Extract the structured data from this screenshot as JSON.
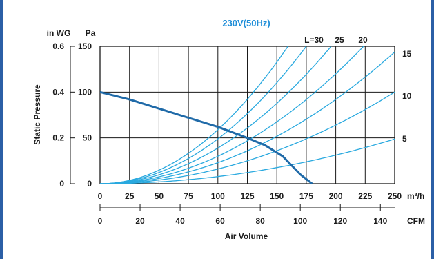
{
  "chart_data": {
    "type": "line",
    "title": "230V(50Hz)",
    "xlabel": "Air Volume",
    "ylabel": "Static Pressure",
    "x_unit_primary": "m³/h",
    "x_unit_secondary": "CFM",
    "y_unit_left_outer": "in WG",
    "y_unit_left_inner": "Pa",
    "xlim": [
      0,
      250
    ],
    "ylim": [
      0,
      150
    ],
    "grid": true,
    "x_ticks_m3h": [
      "0",
      "25",
      "50",
      "75",
      "100",
      "125",
      "150",
      "175",
      "200",
      "225",
      "250"
    ],
    "x_ticks_cfm": [
      "0",
      "20",
      "40",
      "60",
      "80",
      "100",
      "120",
      "140"
    ],
    "y_ticks_pa": [
      "0",
      "50",
      "100",
      "150"
    ],
    "y_ticks_inwg": [
      "0",
      "0.2",
      "0.4",
      "0.6"
    ],
    "y_ticks_right": [
      "5",
      "10",
      "15"
    ],
    "fan_curve": {
      "x": [
        0,
        25,
        50,
        75,
        100,
        125,
        140,
        155,
        170,
        180
      ],
      "y": [
        100,
        92,
        82,
        72,
        62,
        50,
        42,
        30,
        10,
        0
      ]
    },
    "system_curves": [
      {
        "label": "L=30",
        "coef": 0.0059
      },
      {
        "label": "25",
        "coef": 0.0049
      },
      {
        "label": "20",
        "coef": 0.0039
      },
      {
        "label": "",
        "coef": 0.003
      },
      {
        "label": "",
        "coef": 0.0023
      },
      {
        "label": "",
        "coef": 0.0016
      },
      {
        "label": "",
        "coef": 0.00078
      }
    ],
    "colors": {
      "fan_curve": "#1f6aa8",
      "system_curve": "#29a9df",
      "title": "#1f8ed8",
      "accent_bar": "#2b5fa6"
    }
  }
}
